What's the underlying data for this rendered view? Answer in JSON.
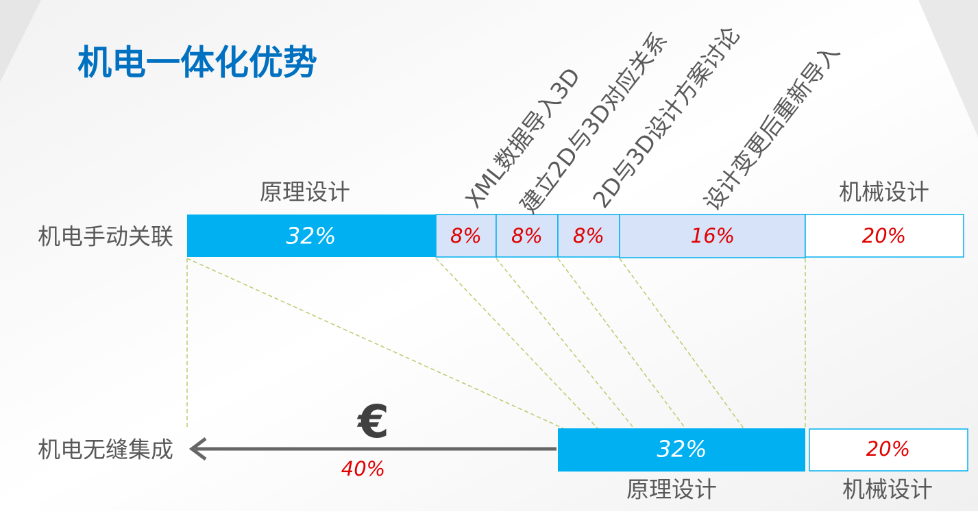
{
  "title": "机电一体化优势",
  "top_row": {
    "label": "机电手动关联",
    "segments": [
      {
        "header": "原理设计",
        "value": "32%"
      },
      {
        "header": "XML数据导入3D",
        "value": "8%"
      },
      {
        "header": "建立2D与3D对应关系",
        "value": "8%"
      },
      {
        "header": "2D与3D设计方案讨论",
        "value": "8%"
      },
      {
        "header": "设计变更后重新导入",
        "value": "16%"
      },
      {
        "header": "机械设计",
        "value": "20%"
      }
    ]
  },
  "bottom_row": {
    "label": "机电无缝集成",
    "segments": [
      {
        "value": "32%",
        "footer": "原理设计"
      },
      {
        "value": "20%",
        "footer": "机械设计"
      }
    ],
    "saving": {
      "symbol": "€",
      "value": "40%"
    }
  }
}
